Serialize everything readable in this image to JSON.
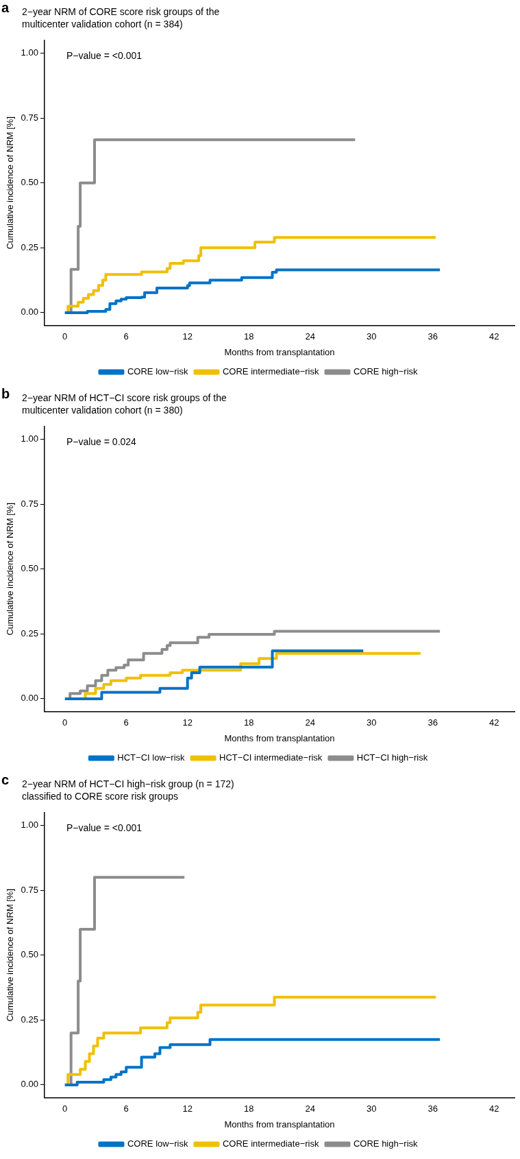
{
  "chart_data": [
    {
      "type": "step",
      "title": "2−year NRM of CORE score risk groups of the\nmulticenter validation cohort (n = 384)",
      "xlabel": "Months from transplantation",
      "ylabel": "Cumulative incidence of NRM [%]",
      "annotations": [
        "a",
        "P−value = <0.001"
      ],
      "legend": "bottom",
      "xlim": [
        -2,
        44
      ],
      "xticks": [
        0,
        6,
        12,
        18,
        24,
        30,
        36,
        42
      ],
      "ylim": [
        -0.05,
        1.05
      ],
      "yticks": [
        {
          "value": 0,
          "label": "0.00"
        },
        {
          "value": 0.25,
          "label": "0.25"
        },
        {
          "value": 0.5,
          "label": "0.50"
        },
        {
          "value": 0.75,
          "label": "0.75"
        },
        {
          "value": 1,
          "label": "1.00"
        }
      ],
      "series": [
        {
          "name": "CORE low−risk",
          "color": "#0072c6",
          "x": [
            0,
            2.2,
            4,
            4.4,
            5,
            5.5,
            6,
            7.5,
            7.8,
            9,
            12,
            12.2,
            14.2,
            17.3,
            20.3,
            20.7,
            36.7
          ],
          "values": [
            0,
            0.005,
            0.012,
            0.035,
            0.045,
            0.052,
            0.058,
            0.06,
            0.077,
            0.095,
            0.104,
            0.115,
            0.125,
            0.135,
            0.156,
            0.165,
            0.165
          ]
        },
        {
          "name": "CORE intermediate−risk",
          "color": "#f0c000",
          "x": [
            0.2,
            0.3,
            1.3,
            1.8,
            2.3,
            2.8,
            3.3,
            3.7,
            4,
            7.5,
            10,
            10.3,
            11.6,
            13.1,
            13.3,
            18.6,
            20.5,
            36.3
          ],
          "values": [
            0,
            0.025,
            0.04,
            0.055,
            0.07,
            0.085,
            0.105,
            0.125,
            0.147,
            0.157,
            0.17,
            0.19,
            0.2,
            0.22,
            0.25,
            0.272,
            0.29,
            0.29
          ]
        },
        {
          "name": "CORE high−risk",
          "color": "#8c8c8c",
          "x": [
            0,
            0.6,
            1.3,
            1.5,
            2.9,
            28.4
          ],
          "values": [
            0,
            0.167,
            0.333,
            0.5,
            0.667,
            0.667
          ]
        }
      ]
    },
    {
      "type": "step",
      "title": "2−year NRM of HCT−CI score risk groups of the\nmulticenter validation cohort (n = 380)",
      "xlabel": "Months from transplantation",
      "ylabel": "Cumulative incidence of NRM [%]",
      "annotations": [
        "b",
        "P−value = 0.024"
      ],
      "legend": "bottom",
      "xlim": [
        -2,
        44
      ],
      "xticks": [
        0,
        6,
        12,
        18,
        24,
        30,
        36,
        42
      ],
      "ylim": [
        -0.05,
        1.05
      ],
      "yticks": [
        {
          "value": 0,
          "label": "0.00"
        },
        {
          "value": 0.25,
          "label": "0.25"
        },
        {
          "value": 0.5,
          "label": "0.50"
        },
        {
          "value": 0.75,
          "label": "0.75"
        },
        {
          "value": 1,
          "label": "1.00"
        }
      ],
      "series": [
        {
          "name": "HCT−CI low−risk",
          "color": "#0072c6",
          "x": [
            0,
            3.6,
            9.3,
            12,
            12.4,
            13.2,
            20.3,
            29.2
          ],
          "values": [
            0,
            0.025,
            0.04,
            0.08,
            0.1,
            0.122,
            0.185,
            0.185
          ]
        },
        {
          "name": "HCT−CI intermediate−risk",
          "color": "#f0c000",
          "x": [
            0.3,
            2,
            3,
            3.8,
            4.5,
            6,
            7.4,
            10.3,
            11.5,
            17.2,
            19,
            20.7,
            34.8
          ],
          "values": [
            0,
            0.02,
            0.04,
            0.055,
            0.07,
            0.08,
            0.09,
            0.1,
            0.11,
            0.135,
            0.155,
            0.175,
            0.175
          ]
        },
        {
          "name": "HCT−CI high−risk",
          "color": "#8c8c8c",
          "x": [
            0.2,
            0.5,
            1.5,
            2.2,
            3,
            3.6,
            4.2,
            5,
            5.8,
            6.2,
            7.7,
            9.5,
            10,
            10.3,
            13,
            13.2,
            14.1,
            20.5,
            36.7
          ],
          "values": [
            0,
            0.02,
            0.03,
            0.05,
            0.07,
            0.09,
            0.11,
            0.12,
            0.13,
            0.15,
            0.175,
            0.19,
            0.205,
            0.216,
            0.237,
            0.237,
            0.248,
            0.26,
            0.26
          ]
        }
      ]
    },
    {
      "type": "step",
      "title": "2−year NRM of HCT−CI high−risk group (n = 172)\nclassified to CORE score risk groups",
      "xlabel": "Months from transplantation",
      "ylabel": "Cumulative incidence of NRM [%]",
      "annotations": [
        "c",
        "P−value = <0.001"
      ],
      "legend": "bottom",
      "xlim": [
        -2,
        44
      ],
      "xticks": [
        0,
        6,
        12,
        18,
        24,
        30,
        36,
        42
      ],
      "ylim": [
        -0.05,
        1.05
      ],
      "yticks": [
        {
          "value": 0,
          "label": "0.00"
        },
        {
          "value": 0.25,
          "label": "0.25"
        },
        {
          "value": 0.5,
          "label": "0.50"
        },
        {
          "value": 0.75,
          "label": "0.75"
        },
        {
          "value": 1,
          "label": "1.00"
        }
      ],
      "series": [
        {
          "name": "CORE low−risk",
          "color": "#0072c6",
          "x": [
            0,
            1.2,
            3.8,
            4.5,
            5,
            5.5,
            6,
            7.5,
            8.8,
            9.3,
            10.3,
            14.2,
            36.7
          ],
          "values": [
            0,
            0.01,
            0.02,
            0.03,
            0.04,
            0.05,
            0.068,
            0.107,
            0.12,
            0.144,
            0.155,
            0.175,
            0.175
          ]
        },
        {
          "name": "CORE intermediate−risk",
          "color": "#f0c000",
          "x": [
            0.2,
            0.3,
            1.5,
            2,
            2.4,
            2.8,
            3.2,
            3.8,
            7.4,
            10,
            10.3,
            13,
            13.3,
            20.5,
            36.3
          ],
          "values": [
            0,
            0.04,
            0.06,
            0.09,
            0.12,
            0.15,
            0.18,
            0.2,
            0.22,
            0.24,
            0.258,
            0.28,
            0.308,
            0.338,
            0.338
          ]
        },
        {
          "name": "CORE high−risk",
          "color": "#8c8c8c",
          "x": [
            0,
            0.6,
            1.3,
            1.5,
            2.9,
            11.7
          ],
          "values": [
            0,
            0.2,
            0.4,
            0.6,
            0.8,
            0.8
          ]
        }
      ]
    }
  ]
}
